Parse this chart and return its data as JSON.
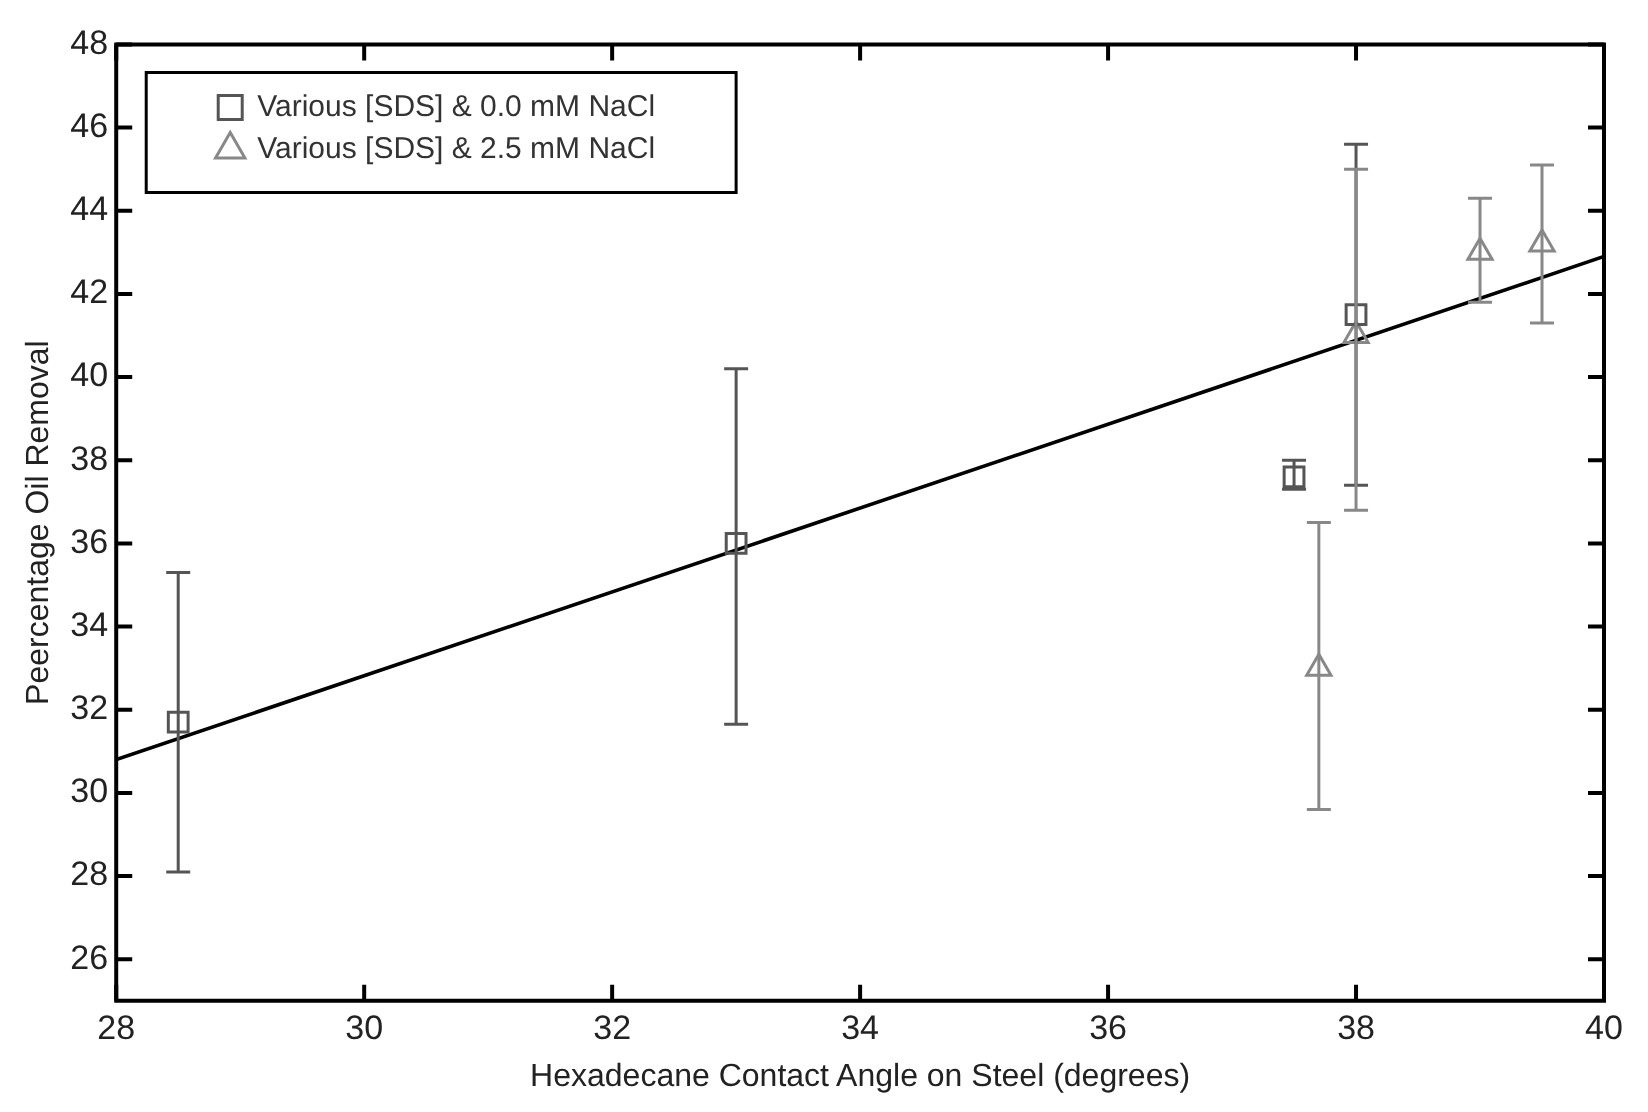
{
  "chart_data": {
    "type": "scatter",
    "xlabel": "Hexadecane Contact Angle on Steel (degrees)",
    "ylabel": "Peercentage Oil Removal",
    "xlim": [
      28,
      40
    ],
    "xticks": [
      28,
      30,
      32,
      34,
      36,
      38,
      40
    ],
    "ylim": [
      25,
      48
    ],
    "yticks": [
      26,
      28,
      30,
      32,
      34,
      36,
      38,
      40,
      42,
      44,
      46,
      48
    ],
    "grid": false,
    "legend": "top left",
    "series": [
      {
        "name": "Various [SDS] & 0.0 mM NaCl",
        "color": "#555555",
        "marker": "square",
        "x": [
          28.5,
          33,
          37.5,
          38
        ],
        "values": [
          31.7,
          36.0,
          37.6,
          41.5
        ],
        "errors": [
          [
            28.1,
            35.3
          ],
          [
            31.65,
            40.2
          ],
          [
            37.3,
            38.0
          ],
          [
            37.4,
            45.6
          ]
        ]
      },
      {
        "name": "Various [SDS] & 2.5 mM NaCl",
        "color": "#888888",
        "marker": "triangle",
        "x": [
          37.7,
          38,
          39,
          39.5
        ],
        "values": [
          33.0,
          41.0,
          43.0,
          43.2
        ],
        "errors": [
          [
            29.6,
            36.5
          ],
          [
            36.8,
            45.0
          ],
          [
            41.8,
            44.3
          ],
          [
            41.3,
            45.1
          ]
        ]
      },
      {
        "type": "line",
        "color": "#000000",
        "marker": "none",
        "line_style": "solid",
        "x": [
          28,
          40
        ],
        "values": [
          30.8,
          42.9
        ]
      }
    ]
  }
}
